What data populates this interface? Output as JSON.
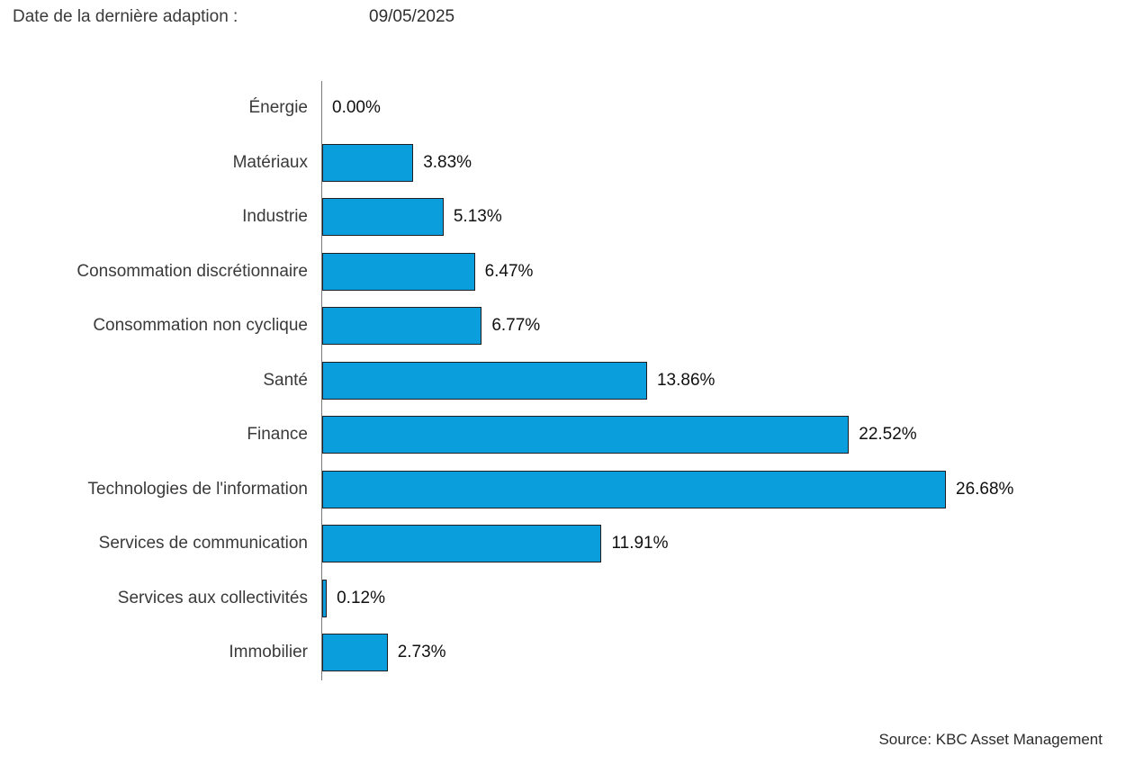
{
  "header": {
    "label": "Date de la dernière adaption :",
    "date": "09/05/2025"
  },
  "source": "Source: KBC Asset Management",
  "chart_data": {
    "type": "bar",
    "orientation": "horizontal",
    "title": "",
    "xlabel": "",
    "ylabel": "",
    "xlim": [
      0,
      30
    ],
    "grid": false,
    "legend": false,
    "bar_color": "#0a9fdc",
    "bar_border_color": "#1e1e24",
    "axis_color": "#7a7a7a",
    "categories": [
      "Énergie",
      "Matériaux",
      "Industrie",
      "Consommation discrétionnaire",
      "Consommation non cyclique",
      "Santé",
      "Finance",
      "Technologies de l'information",
      "Services de communication",
      "Services aux collectivités",
      "Immobilier"
    ],
    "values": [
      0.0,
      3.83,
      5.13,
      6.47,
      6.77,
      13.86,
      22.52,
      26.68,
      11.91,
      0.12,
      2.73
    ],
    "value_labels": [
      "0.00%",
      "3.83%",
      "5.13%",
      "6.47%",
      "6.77%",
      "13.86%",
      "22.52%",
      "26.68%",
      "11.91%",
      "0.12%",
      "2.73%"
    ]
  }
}
